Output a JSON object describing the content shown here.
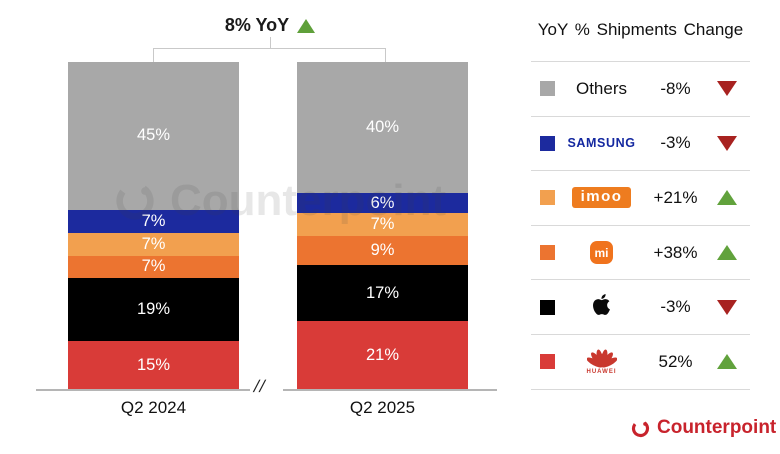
{
  "title": {
    "label": "8% YoY",
    "direction": "up"
  },
  "watermark": {
    "text": "Counterpoint"
  },
  "chart_data": {
    "type": "bar",
    "stacked": true,
    "title": "8% YoY",
    "categories": [
      "Q2 2024",
      "Q2 2025"
    ],
    "series": [
      {
        "name": "Others",
        "color": "#a8a8a8",
        "values": [
          45,
          40
        ]
      },
      {
        "name": "Samsung",
        "color": "#1c2a9e",
        "values": [
          7,
          6
        ]
      },
      {
        "name": "imoo",
        "color": "#f2a04f",
        "values": [
          7,
          7
        ]
      },
      {
        "name": "Xiaomi",
        "color": "#ec7430",
        "values": [
          7,
          9
        ]
      },
      {
        "name": "Apple",
        "color": "#000000",
        "values": [
          19,
          17
        ]
      },
      {
        "name": "Huawei",
        "color": "#d93b38",
        "values": [
          15,
          21
        ]
      }
    ],
    "value_suffix": "%",
    "ylim": [
      0,
      100
    ],
    "axis_break": "//",
    "legend_position": "right",
    "grid": false
  },
  "legend": {
    "title": "YoY % Shipments Change",
    "rows": [
      {
        "brand_label": "Others",
        "logo": "text",
        "change": "-8%",
        "direction": "down",
        "color": "#a8a8a8"
      },
      {
        "brand_label": "SAMSUNG",
        "logo": "samsung",
        "change": "-3%",
        "direction": "down",
        "color": "#1c2a9e"
      },
      {
        "brand_label": "imoo",
        "logo": "imoo",
        "change": "+21%",
        "direction": "up",
        "color": "#f2a04f"
      },
      {
        "brand_label": "mi",
        "logo": "xiaomi",
        "change": "+38%",
        "direction": "up",
        "color": "#ec7430"
      },
      {
        "brand_label": "",
        "logo": "apple",
        "change": "-3%",
        "direction": "down",
        "color": "#000000"
      },
      {
        "brand_label": "HUAWEI",
        "logo": "huawei",
        "change": "52%",
        "direction": "up",
        "color": "#d93b38"
      }
    ]
  },
  "footer": {
    "brand": "Counterpoint"
  },
  "colors": {
    "up_triangle": "#61a23c",
    "down_triangle": "#a82220",
    "counterpoint_red": "#c8232c",
    "axis": "#b5b5b5",
    "separator": "#d9d9d9"
  }
}
